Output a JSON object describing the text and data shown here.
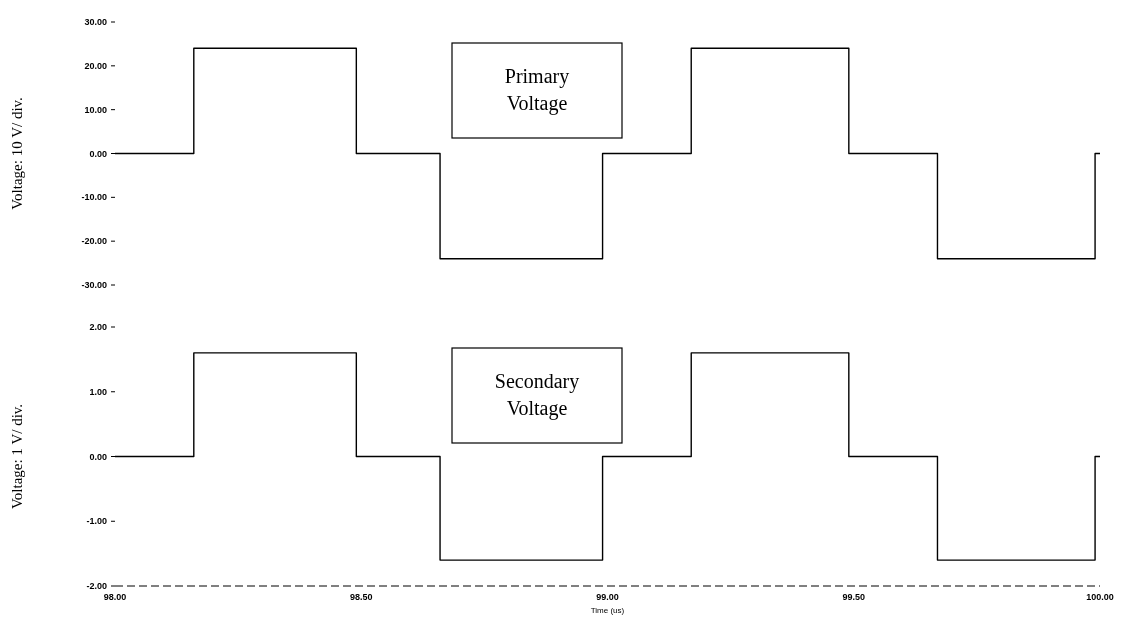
{
  "chart_data": [
    {
      "type": "step",
      "ylabel": "Voltage: 10 V/ div.",
      "xlim": [
        98,
        100
      ],
      "ylim": [
        -30,
        30
      ],
      "tick_labels": "y",
      "yticks": [
        {
          "value": 30,
          "label": "30.00"
        },
        {
          "value": 20,
          "label": "20.00"
        },
        {
          "value": 10,
          "label": "10.00"
        },
        {
          "value": 0,
          "label": "0.00"
        },
        {
          "value": -10,
          "label": "-10.00"
        },
        {
          "value": -20,
          "label": "-20.00"
        },
        {
          "value": -30,
          "label": "-30.00"
        }
      ],
      "x": [
        98.0,
        98.16,
        98.49,
        98.66,
        98.99,
        99.17,
        99.49,
        99.67,
        99.99,
        100.0
      ],
      "series": [
        {
          "color": "#000000",
          "values": [
            0,
            24,
            0,
            -24,
            0,
            24,
            0,
            -24,
            0,
            0
          ]
        }
      ],
      "annotations": [
        "Primary Voltage"
      ]
    },
    {
      "type": "step",
      "ylabel": "Voltage: 1 V/ div.",
      "xlabel": "Time (us)",
      "xlim": [
        98,
        100
      ],
      "ylim": [
        -2,
        2
      ],
      "xticks": [
        {
          "value": 98,
          "label": "98.00"
        },
        {
          "value": 98.5,
          "label": "98.50"
        },
        {
          "value": 99,
          "label": "99.00"
        },
        {
          "value": 99.5,
          "label": "99.50"
        },
        {
          "value": 100,
          "label": "100.00"
        }
      ],
      "yticks": [
        {
          "value": 2,
          "label": "2.00"
        },
        {
          "value": 1,
          "label": "1.00"
        },
        {
          "value": 0,
          "label": "0.00"
        },
        {
          "value": -1,
          "label": "-1.00"
        },
        {
          "value": -2,
          "label": "-2.00"
        }
      ],
      "x": [
        98.0,
        98.16,
        98.49,
        98.66,
        98.99,
        99.17,
        99.49,
        99.67,
        99.99,
        100.0
      ],
      "series": [
        {
          "color": "#000000",
          "values": [
            0,
            1.6,
            0,
            -1.6,
            0,
            1.6,
            0,
            -1.6,
            0,
            0
          ]
        }
      ],
      "annotations": [
        "Secondary Voltage"
      ]
    }
  ]
}
